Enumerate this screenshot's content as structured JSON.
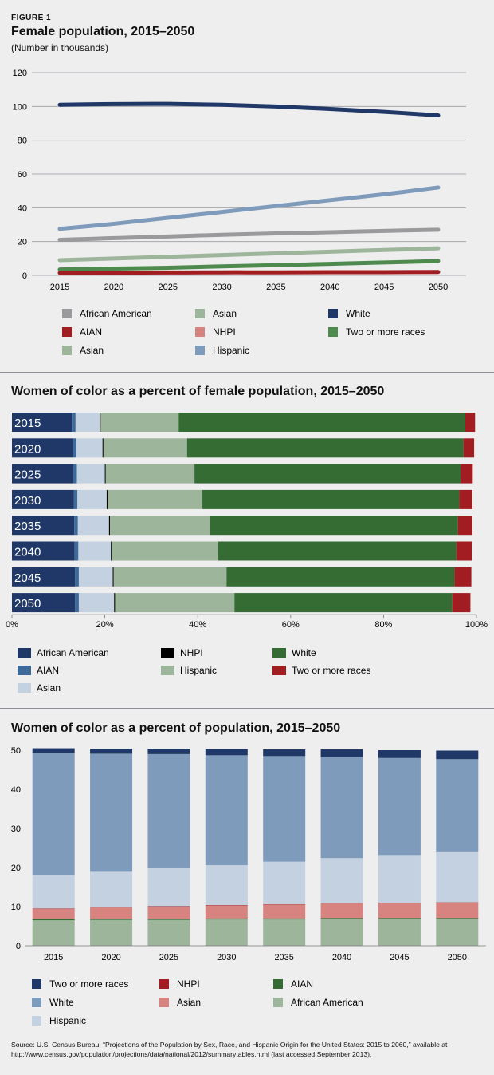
{
  "figure_label": "FIGURE 1",
  "source_text": "Source: U.S. Census Bureau, “Projections of the Population by Sex, Race, and Hispanic Origin for the United States: 2015 to 2060,” available at http://www.census.gov/population/projections/data/national/2012/summarytables.html (last accessed September 2013).",
  "chart_data": [
    {
      "type": "line",
      "title": "Female population, 2015–2050",
      "subtitle": "(Number in thousands)",
      "x": [
        2015,
        2020,
        2025,
        2030,
        2035,
        2040,
        2045,
        2050
      ],
      "ylim": [
        0,
        120
      ],
      "yticks": [
        0,
        20,
        40,
        60,
        80,
        100,
        120
      ],
      "grid": true,
      "legend_position": "bottom",
      "series": [
        {
          "name": "White",
          "color": "#1f3868",
          "values": [
            101,
            101.4,
            101.5,
            101,
            100,
            98.5,
            96.8,
            94.7
          ]
        },
        {
          "name": "Hispanic",
          "color": "#7f9bbb",
          "values": [
            27.5,
            30.5,
            34,
            37.5,
            41,
            44.5,
            48,
            52
          ]
        },
        {
          "name": "African American",
          "color": "#9a9a9d",
          "values": [
            21,
            22,
            23,
            24,
            24.8,
            25.5,
            26.3,
            27
          ]
        },
        {
          "name": "Asian",
          "color": "#9db59a",
          "values": [
            9,
            10,
            11,
            12,
            13,
            14,
            15,
            16
          ]
        },
        {
          "name": "Two or more races",
          "color": "#4e8a4e",
          "values": [
            3.5,
            4,
            4.5,
            5.3,
            6,
            6.8,
            7.6,
            8.5
          ]
        },
        {
          "name": "AIAN",
          "color": "#a11d22",
          "values": [
            1.5,
            1.6,
            1.7,
            1.8,
            1.8,
            1.9,
            1.9,
            2
          ]
        }
      ],
      "legend": [
        {
          "label": "African American",
          "color": "#9a9a9d"
        },
        {
          "label": "Asian",
          "color": "#9db59a"
        },
        {
          "label": "White",
          "color": "#1f3868"
        },
        {
          "label": "AIAN",
          "color": "#a11d22"
        },
        {
          "label": "NHPI",
          "color": "#d78481"
        },
        {
          "label": "Two or more races",
          "color": "#4e8a4e"
        },
        {
          "label": "Asian",
          "color": "#9db59a"
        },
        {
          "label": "Hispanic",
          "color": "#7f9bbb"
        }
      ]
    },
    {
      "type": "bar",
      "orientation": "horizontal",
      "stacked": true,
      "title": "Women of color as a percent of female population, 2015–2050",
      "categories": [
        "2015",
        "2020",
        "2025",
        "2030",
        "2035",
        "2040",
        "2045",
        "2050"
      ],
      "xlim": [
        0,
        100
      ],
      "xticks": [
        "0%",
        "20%",
        "40%",
        "60%",
        "80%",
        "100%"
      ],
      "legend_position": "bottom",
      "series": [
        {
          "name": "African American",
          "color": "#1f3868",
          "values": [
            12.9,
            13.1,
            13.2,
            13.3,
            13.4,
            13.5,
            13.6,
            13.6
          ]
        },
        {
          "name": "AIAN",
          "color": "#3d6a9a",
          "values": [
            0.8,
            0.8,
            0.8,
            0.8,
            0.8,
            0.8,
            0.8,
            0.8
          ]
        },
        {
          "name": "Asian",
          "color": "#c3d1e0",
          "values": [
            5.2,
            5.6,
            6,
            6.3,
            6.7,
            7,
            7.3,
            7.6
          ]
        },
        {
          "name": "NHPI",
          "color": "#000000",
          "values": [
            0.2,
            0.2,
            0.2,
            0.2,
            0.2,
            0.2,
            0.2,
            0.2
          ]
        },
        {
          "name": "Hispanic",
          "color": "#9db59a",
          "values": [
            16.8,
            18,
            19.1,
            20.4,
            21.6,
            22.9,
            24.3,
            25.7
          ]
        },
        {
          "name": "White",
          "color": "#346c34",
          "values": [
            61.7,
            59.5,
            57.3,
            55.3,
            53.3,
            51.3,
            49.1,
            46.9
          ]
        },
        {
          "name": "Two or more races",
          "color": "#a11d22",
          "values": [
            2.1,
            2.3,
            2.6,
            2.8,
            3.1,
            3.3,
            3.6,
            3.9
          ]
        }
      ]
    },
    {
      "type": "bar",
      "orientation": "vertical",
      "stacked": true,
      "title": "Women of color as a percent of population, 2015–2050",
      "categories": [
        "2015",
        "2020",
        "2025",
        "2030",
        "2035",
        "2040",
        "2045",
        "2050"
      ],
      "ylim": [
        0,
        50
      ],
      "yticks": [
        0,
        10,
        20,
        30,
        40,
        50
      ],
      "legend_position": "bottom",
      "series": [
        {
          "name": "African American",
          "color": "#9db59a",
          "values": [
            6.5,
            6.6,
            6.6,
            6.7,
            6.7,
            6.8,
            6.8,
            6.8
          ]
        },
        {
          "name": "AIAN",
          "color": "#346c34",
          "values": [
            0.3,
            0.3,
            0.3,
            0.3,
            0.3,
            0.3,
            0.3,
            0.3
          ]
        },
        {
          "name": "Asian",
          "color": "#d78481",
          "values": [
            2.6,
            2.9,
            3.1,
            3.3,
            3.5,
            3.7,
            3.8,
            3.9
          ]
        },
        {
          "name": "NHPI",
          "color": "#a11d22",
          "values": [
            0.1,
            0.1,
            0.1,
            0.1,
            0.1,
            0.1,
            0.1,
            0.1
          ]
        },
        {
          "name": "Hispanic",
          "color": "#c3d1e0",
          "values": [
            8.6,
            9,
            9.7,
            10.2,
            10.9,
            11.5,
            12.2,
            13
          ]
        },
        {
          "name": "White",
          "color": "#7f9bbb",
          "values": [
            31.2,
            30.2,
            29.2,
            28.1,
            27,
            25.9,
            24.8,
            23.6
          ]
        },
        {
          "name": "Two or more races",
          "color": "#1f3868",
          "values": [
            1.2,
            1.3,
            1.4,
            1.6,
            1.7,
            1.9,
            2,
            2.2
          ]
        }
      ],
      "legend": [
        {
          "label": "Two or more races",
          "color": "#1f3868"
        },
        {
          "label": "NHPI",
          "color": "#a11d22"
        },
        {
          "label": "AIAN",
          "color": "#346c34"
        },
        {
          "label": "White",
          "color": "#7f9bbb"
        },
        {
          "label": "Asian",
          "color": "#d78481"
        },
        {
          "label": "African American",
          "color": "#9db59a"
        },
        {
          "label": "Hispanic",
          "color": "#c3d1e0"
        }
      ]
    }
  ]
}
